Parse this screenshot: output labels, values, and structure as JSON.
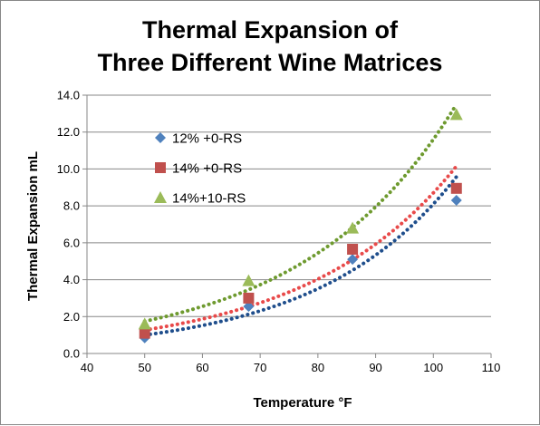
{
  "chart_data": {
    "type": "scatter",
    "title_lines": [
      "Thermal Expansion of",
      "Three Different Wine Matrices"
    ],
    "xlabel": "Temperature °F",
    "ylabel": "Thermal Expansion  mL",
    "xlim": [
      40,
      110
    ],
    "ylim": [
      0,
      14
    ],
    "x_ticks": [
      "40",
      "50",
      "60",
      "70",
      "80",
      "90",
      "100",
      "110"
    ],
    "y_ticks": [
      "0.0",
      "2.0",
      "4.0",
      "6.0",
      "8.0",
      "10.0",
      "12.0",
      "14.0"
    ],
    "grid": "horizontal",
    "legend_position": "top-left",
    "trendline": "exponential (dotted)",
    "series": [
      {
        "name": "12% +0-RS",
        "marker": "diamond",
        "color": "#4f81bd",
        "trend_color": "#1f4e8c",
        "points": [
          [
            50,
            0.85
          ],
          [
            68,
            2.55
          ],
          [
            86,
            5.1
          ],
          [
            104,
            8.3
          ]
        ]
      },
      {
        "name": "14% +0-RS",
        "marker": "square",
        "color": "#c0504d",
        "trend_color": "#e84a4a",
        "points": [
          [
            50,
            1.1
          ],
          [
            68,
            3.0
          ],
          [
            86,
            5.65
          ],
          [
            104,
            8.95
          ]
        ]
      },
      {
        "name": "14%+10-RS",
        "marker": "triangle",
        "color": "#9bbb59",
        "trend_color": "#6e9a2f",
        "points": [
          [
            50,
            1.6
          ],
          [
            68,
            3.95
          ],
          [
            86,
            6.8
          ],
          [
            104,
            12.95
          ]
        ]
      }
    ]
  }
}
